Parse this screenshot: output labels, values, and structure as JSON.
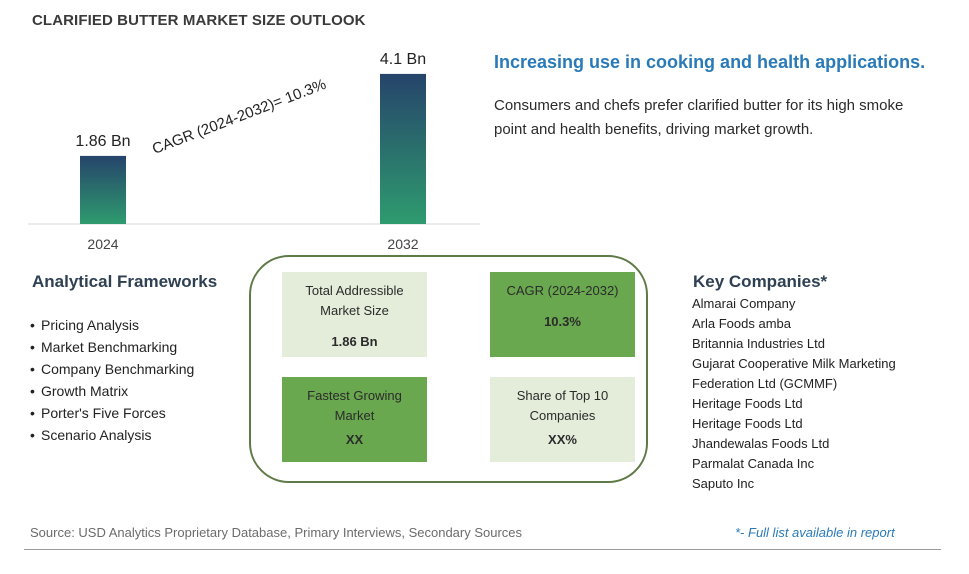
{
  "page_title": "CLARIFIED BUTTER MARKET SIZE OUTLOOK",
  "chart_data": {
    "type": "bar",
    "categories": [
      "2024",
      "2032"
    ],
    "values": [
      1.86,
      4.1
    ],
    "value_labels": [
      "1.86 Bn",
      "4.1 Bn"
    ],
    "unit": "Bn",
    "annotation": "CAGR (2024-2032)=  10.3%",
    "ylim": [
      0,
      4.5
    ],
    "grid": false,
    "colors": {
      "bar_top": "#26446b",
      "bar_bottom": "#2e9b6e"
    }
  },
  "headline": "Increasing use in cooking and health applications.",
  "summary": "Consumers and chefs prefer clarified butter for its high smoke point and health benefits, driving market growth.",
  "frameworks": {
    "title": "Analytical Frameworks",
    "items": [
      "Pricing Analysis",
      "Market Benchmarking",
      "Company Benchmarking",
      "Growth Matrix",
      "Porter's Five Forces",
      "Scenario Analysis"
    ]
  },
  "metrics": {
    "tam": {
      "label": "Total Addressible Market Size",
      "value": "1.86 Bn"
    },
    "cagr": {
      "label": "CAGR (2024-2032)",
      "value": "10.3%"
    },
    "fastest": {
      "label": "Fastest Growing Market",
      "value": "XX"
    },
    "share": {
      "label": "Share of Top 10 Companies",
      "value": "XX%"
    }
  },
  "key_companies": {
    "title": "Key Companies*",
    "items": [
      "Almarai Company",
      "Arla Foods amba",
      "Britannia Industries Ltd",
      "Gujarat Cooperative Milk Marketing",
      "Federation Ltd (GCMMF)",
      "Heritage Foods Ltd",
      "Heritage Foods Ltd",
      "Jhandewalas Foods Ltd",
      "Parmalat Canada Inc",
      "Saputo Inc"
    ]
  },
  "source": "Source: USD Analytics Proprietary Database, Primary Interviews, Secondary Sources",
  "footnote": "*- Full list available in report",
  "colors": {
    "accent_blue": "#2a7ab8",
    "light_green": "#e3edd9",
    "dark_green": "#69a84f",
    "panel_border": "#5f7a46"
  }
}
